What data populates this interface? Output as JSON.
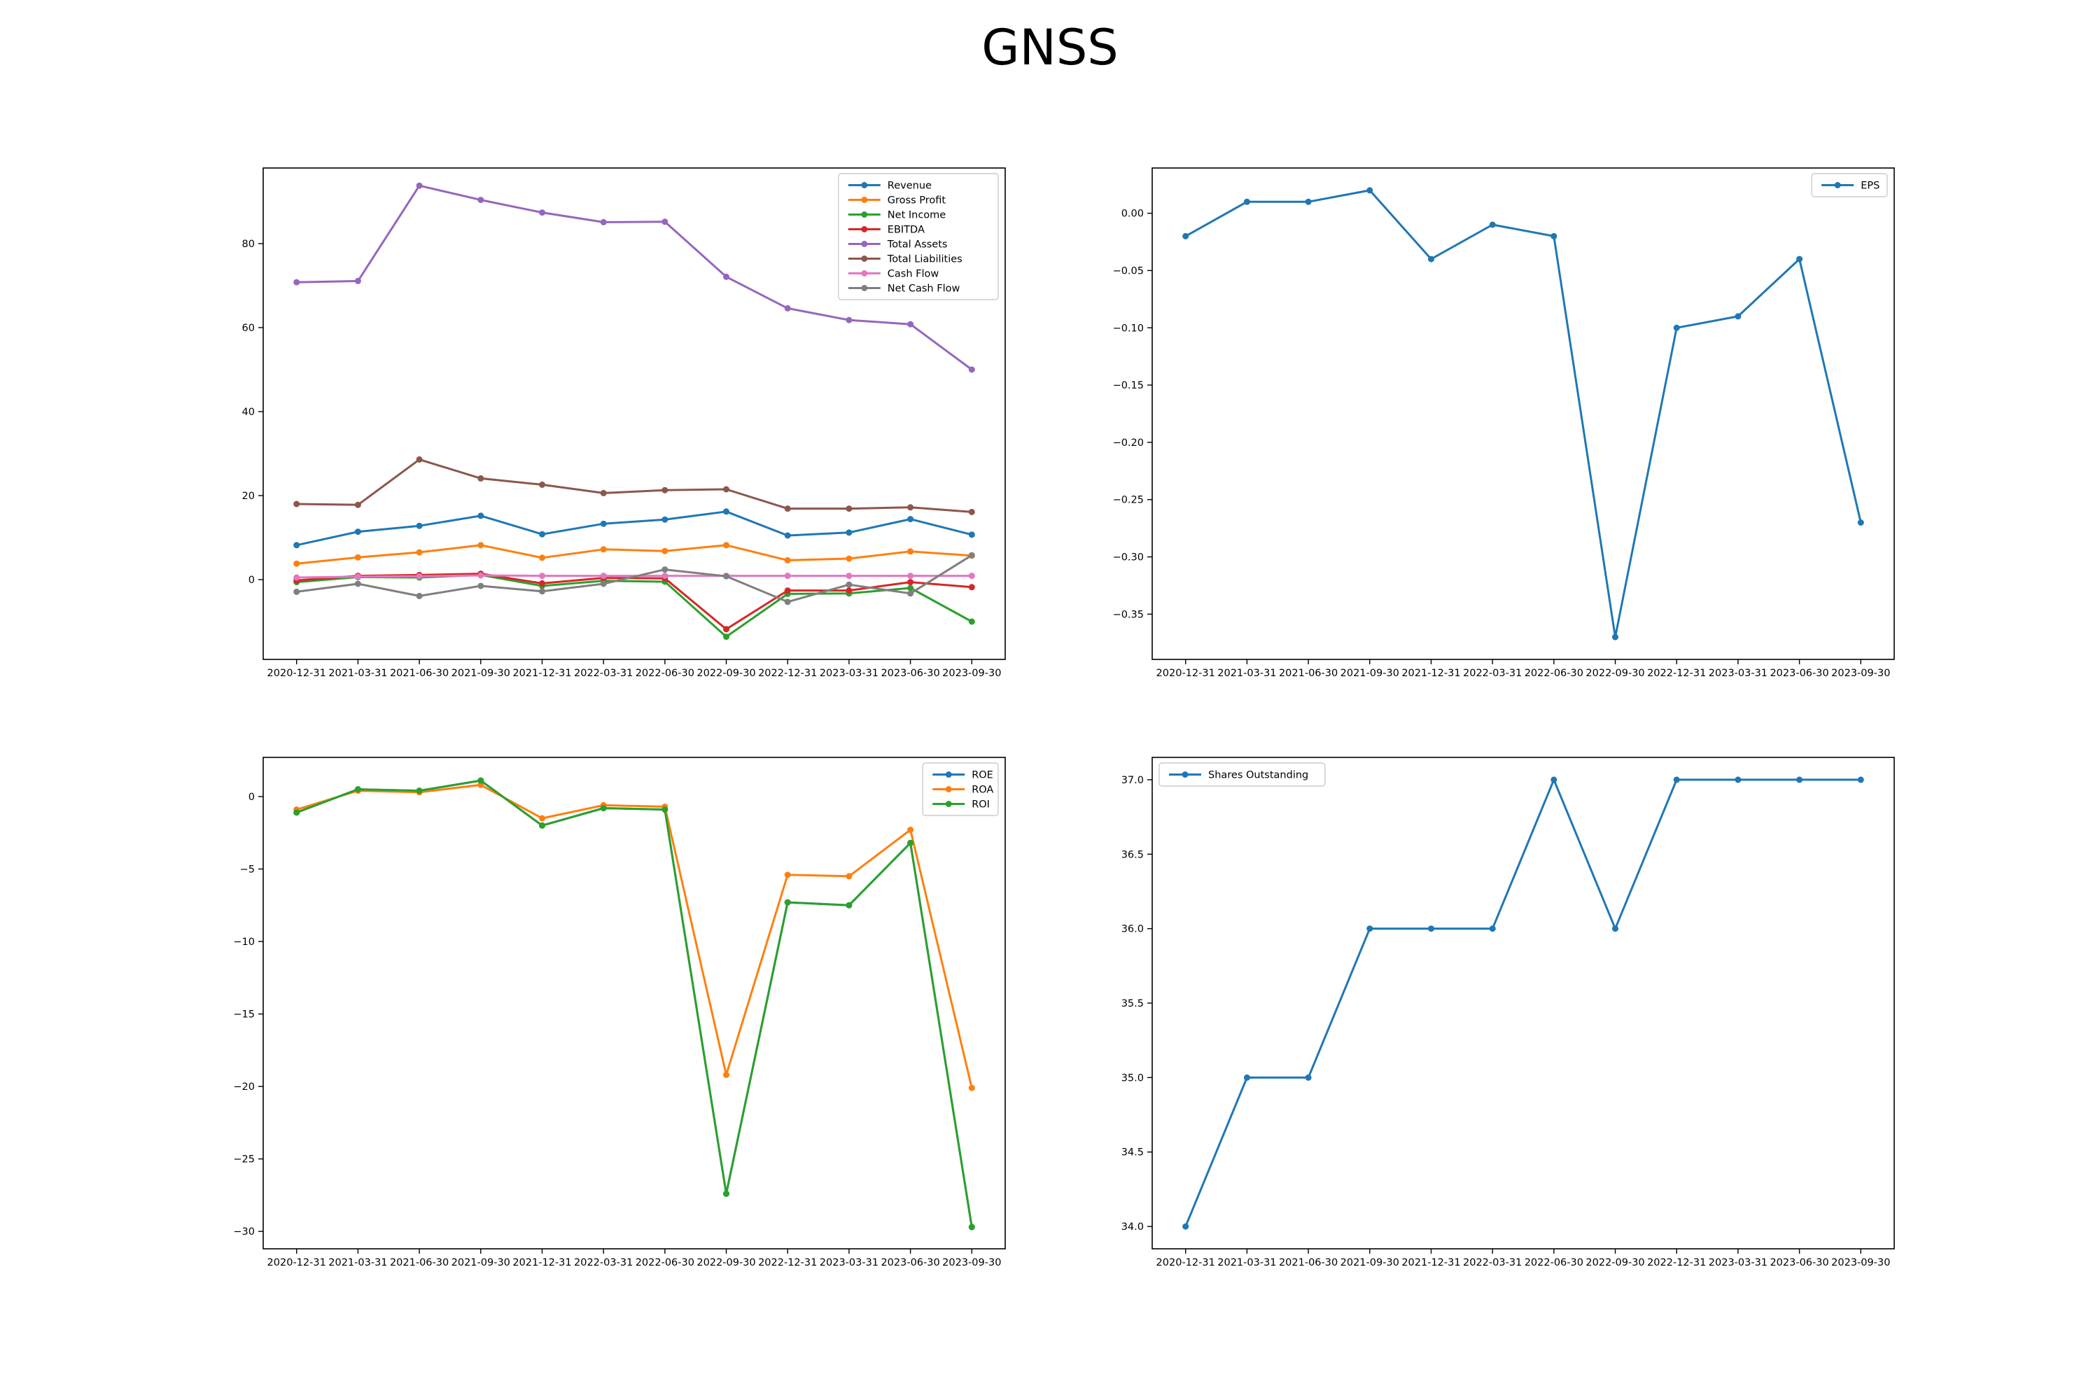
{
  "figure_title": "GNSS",
  "chart_data": [
    {
      "type": "line",
      "categories": [
        "2020-12-31",
        "2021-03-31",
        "2021-06-30",
        "2021-09-30",
        "2021-12-31",
        "2022-03-31",
        "2022-06-30",
        "2022-09-30",
        "2022-12-31",
        "2023-03-31",
        "2023-06-30",
        "2023-09-30"
      ],
      "ylim": [
        -19,
        98
      ],
      "yticks": [
        "0",
        "20",
        "40",
        "60",
        "80"
      ],
      "ytick_values": [
        0,
        20,
        40,
        60,
        80
      ],
      "legend_position": "upper right",
      "grid": false,
      "series": [
        {
          "name": "Revenue",
          "color": "#1f77b4",
          "values": [
            8.2,
            11.4,
            12.8,
            15.2,
            10.8,
            13.3,
            14.3,
            16.2,
            10.5,
            11.2,
            14.4,
            10.7
          ]
        },
        {
          "name": "Gross Profit",
          "color": "#ff7f0e",
          "values": [
            3.8,
            5.3,
            6.5,
            8.2,
            5.2,
            7.2,
            6.8,
            8.2,
            4.6,
            5.0,
            6.7,
            5.7
          ]
        },
        {
          "name": "Net Income",
          "color": "#2ca02c",
          "values": [
            -0.6,
            0.6,
            0.5,
            1.1,
            -1.5,
            -0.3,
            -0.5,
            -13.6,
            -3.4,
            -3.3,
            -2.0,
            -10.0
          ]
        },
        {
          "name": "EBITDA",
          "color": "#d62728",
          "values": [
            -0.2,
            0.9,
            1.1,
            1.4,
            -0.9,
            0.4,
            0.3,
            -11.8,
            -2.6,
            -2.6,
            -0.6,
            -1.8
          ]
        },
        {
          "name": "Total Assets",
          "color": "#9467bd",
          "values": [
            70.8,
            71.1,
            93.8,
            90.4,
            87.4,
            85.1,
            85.2,
            72.1,
            64.6,
            61.8,
            60.8,
            50.0
          ]
        },
        {
          "name": "Total Liabilities",
          "color": "#8c564b",
          "values": [
            18.0,
            17.8,
            28.6,
            24.1,
            22.6,
            20.6,
            21.3,
            21.5,
            16.9,
            16.9,
            17.2,
            16.1
          ]
        },
        {
          "name": "Cash Flow",
          "color": "#e377c2",
          "values": [
            0.5,
            0.7,
            0.8,
            1.0,
            0.9,
            0.9,
            0.9,
            0.9,
            0.9,
            0.9,
            0.9,
            0.9
          ]
        },
        {
          "name": "Net Cash Flow",
          "color": "#7f7f7f",
          "values": [
            -2.9,
            -1.0,
            -3.9,
            -1.5,
            -2.8,
            -1.0,
            2.4,
            0.8,
            -5.3,
            -1.2,
            -3.3,
            5.8
          ]
        }
      ]
    },
    {
      "type": "line",
      "categories": [
        "2020-12-31",
        "2021-03-31",
        "2021-06-30",
        "2021-09-30",
        "2021-12-31",
        "2022-03-31",
        "2022-06-30",
        "2022-09-30",
        "2022-12-31",
        "2023-03-31",
        "2023-06-30",
        "2023-09-30"
      ],
      "ylim": [
        -0.3895,
        0.0395
      ],
      "yticks": [
        "0.00",
        "−0.05",
        "−0.10",
        "−0.15",
        "−0.20",
        "−0.25",
        "−0.30",
        "−0.35"
      ],
      "ytick_values": [
        0,
        -0.05,
        -0.1,
        -0.15,
        -0.2,
        -0.25,
        -0.3,
        -0.35
      ],
      "legend_position": "upper right",
      "grid": false,
      "series": [
        {
          "name": "EPS",
          "color": "#1f77b4",
          "values": [
            -0.02,
            0.01,
            0.01,
            0.02,
            -0.04,
            -0.01,
            -0.02,
            -0.37,
            -0.1,
            -0.09,
            -0.04,
            -0.27
          ]
        }
      ]
    },
    {
      "type": "line",
      "categories": [
        "2020-12-31",
        "2021-03-31",
        "2021-06-30",
        "2021-09-30",
        "2021-12-31",
        "2022-03-31",
        "2022-06-30",
        "2022-09-30",
        "2022-12-31",
        "2023-03-31",
        "2023-06-30",
        "2023-09-30"
      ],
      "ylim": [
        -31.2,
        2.7
      ],
      "yticks": [
        "0",
        "−5",
        "−10",
        "−15",
        "−20",
        "−25",
        "−30"
      ],
      "ytick_values": [
        0,
        -5,
        -10,
        -15,
        -20,
        -25,
        -30
      ],
      "legend_position": "upper right",
      "grid": false,
      "series": [
        {
          "name": "ROE",
          "color": "#1f77b4",
          "values": [
            -1.1,
            0.5,
            0.4,
            1.1,
            -2.0,
            -0.8,
            -0.9,
            -27.4,
            -7.3,
            -7.5,
            -3.2,
            -29.7
          ]
        },
        {
          "name": "ROA",
          "color": "#ff7f0e",
          "values": [
            -0.9,
            0.4,
            0.3,
            0.8,
            -1.5,
            -0.6,
            -0.7,
            -19.2,
            -5.4,
            -5.5,
            -2.3,
            -20.1
          ]
        },
        {
          "name": "ROI",
          "color": "#2ca02c",
          "values": [
            -1.1,
            0.5,
            0.4,
            1.1,
            -2.0,
            -0.8,
            -0.9,
            -27.4,
            -7.3,
            -7.5,
            -3.2,
            -29.7
          ]
        }
      ]
    },
    {
      "type": "line",
      "categories": [
        "2020-12-31",
        "2021-03-31",
        "2021-06-30",
        "2021-09-30",
        "2021-12-31",
        "2022-03-31",
        "2022-06-30",
        "2022-09-30",
        "2022-12-31",
        "2023-03-31",
        "2023-06-30",
        "2023-09-30"
      ],
      "ylim": [
        33.85,
        37.15
      ],
      "yticks": [
        "34.0",
        "34.5",
        "35.0",
        "35.5",
        "36.0",
        "36.5",
        "37.0"
      ],
      "ytick_values": [
        34.0,
        34.5,
        35.0,
        35.5,
        36.0,
        36.5,
        37.0
      ],
      "legend_position": "upper left",
      "grid": false,
      "series": [
        {
          "name": "Shares Outstanding",
          "color": "#1f77b4",
          "values": [
            34,
            35,
            35,
            36,
            36,
            36,
            37,
            36,
            37,
            37,
            37,
            37
          ]
        }
      ]
    }
  ]
}
